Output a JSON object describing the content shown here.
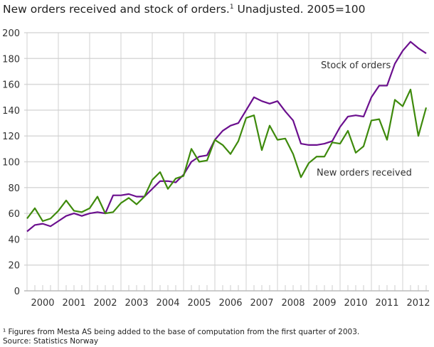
{
  "chart_data": {
    "type": "line",
    "title": "New orders received and stock of orders.",
    "title_sup": "1",
    "title_rest": " Unadjusted. 2005=100",
    "x_tick_labels": [
      "2000",
      "2001",
      "2002",
      "2003",
      "2004",
      "2005",
      "2006",
      "2007",
      "2008",
      "2009",
      "2010",
      "2011",
      "2012"
    ],
    "x_note": "quarterly, 2000Q1–2012Q4",
    "ylim": [
      0,
      200
    ],
    "y_ticks": [
      0,
      20,
      40,
      60,
      80,
      100,
      120,
      140,
      160,
      180,
      200
    ],
    "grid": true,
    "series": [
      {
        "name": "Stock of orders",
        "color": "#6b0f8e",
        "values": [
          46,
          51,
          52,
          50,
          54,
          58,
          60,
          58,
          60,
          61,
          60,
          74,
          74,
          75,
          73,
          73,
          79,
          85,
          85,
          84,
          90,
          100,
          104,
          105,
          117,
          124,
          128,
          130,
          140,
          150,
          147,
          145,
          147,
          139,
          132,
          114,
          113,
          113,
          114,
          116,
          127,
          135,
          136,
          135,
          150,
          159,
          159,
          176,
          186,
          193,
          188,
          184
        ]
      },
      {
        "name": "New orders received",
        "color": "#3e8a0c",
        "values": [
          56,
          64,
          54,
          56,
          62,
          70,
          62,
          61,
          64,
          73,
          60,
          61,
          68,
          72,
          67,
          73,
          86,
          92,
          79,
          87,
          89,
          110,
          100,
          101,
          117,
          113,
          106,
          116,
          134,
          136,
          109,
          128,
          117,
          118,
          106,
          88,
          99,
          104,
          104,
          115,
          114,
          124,
          107,
          112,
          132,
          133,
          117,
          148,
          143,
          156,
          120,
          142
        ]
      }
    ]
  },
  "footnote": "¹ Figures from Mesta AS being added to the base of computation from the first quarter of 2003.",
  "source": "Source: Statistics Norway"
}
